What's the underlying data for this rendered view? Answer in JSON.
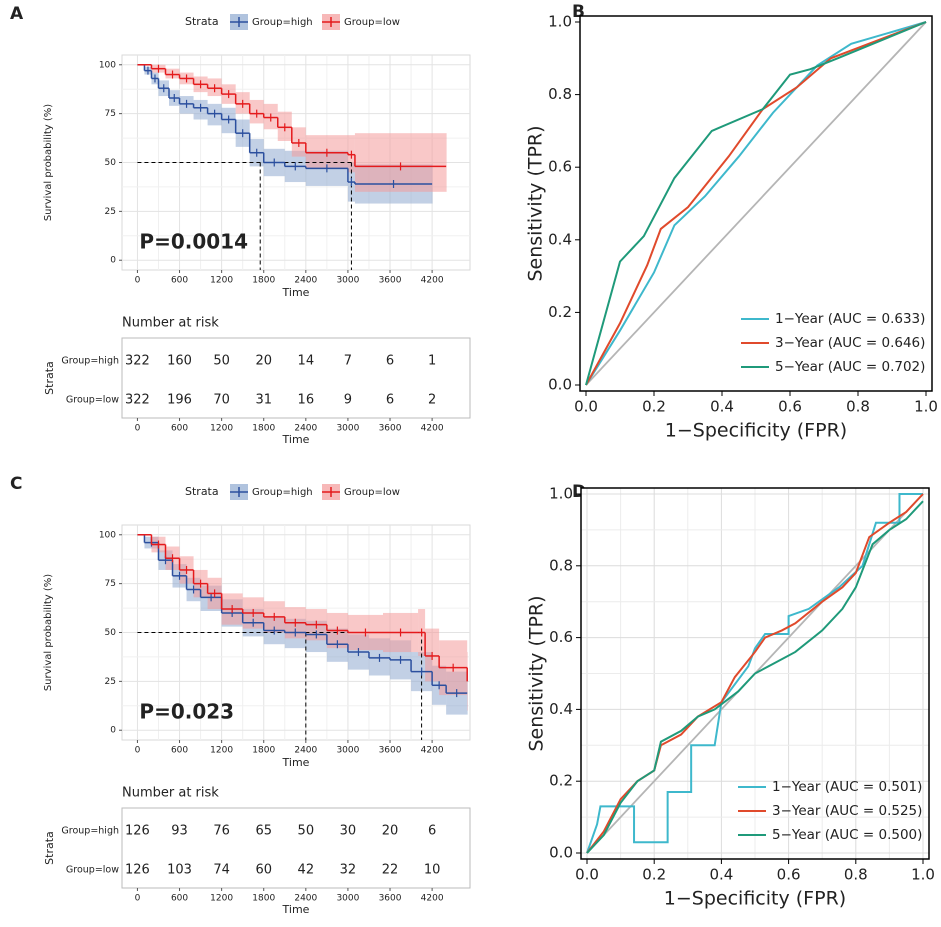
{
  "chart_data": [
    {
      "type": "km",
      "panel": "A",
      "ylabel": "Survival probability (%)",
      "xlabel": "Time",
      "legend_title": "Strata",
      "xlim": [
        -220,
        4740
      ],
      "ylim": [
        -5,
        105
      ],
      "xticks": [
        0,
        600,
        1200,
        1800,
        2400,
        3000,
        3600,
        4200
      ],
      "yticks": [
        0,
        25,
        50,
        75,
        100
      ],
      "annotation": "P=0.0014",
      "median_times": [
        1750,
        3050
      ],
      "series": [
        {
          "name": "Group=high",
          "color": "#2b4f9e",
          "band_color": "#8fa9d0",
          "x": [
            0,
            100,
            200,
            300,
            450,
            600,
            800,
            1000,
            1200,
            1400,
            1600,
            1800,
            2100,
            2400,
            3000,
            3100,
            4200
          ],
          "values": [
            100,
            97,
            93,
            88,
            83,
            80,
            78,
            75,
            72,
            65,
            55,
            50,
            48,
            47,
            40,
            39,
            39
          ],
          "lower": [
            100,
            95,
            90,
            84,
            79,
            75,
            72,
            69,
            65,
            58,
            48,
            43,
            40,
            38,
            30,
            29,
            29
          ],
          "upper": [
            100,
            99,
            96,
            92,
            87,
            84,
            82,
            80,
            78,
            72,
            62,
            57,
            56,
            56,
            50,
            49,
            49
          ]
        },
        {
          "name": "Group=low",
          "color": "#e41a1c",
          "band_color": "#f49a9a",
          "x": [
            0,
            200,
            400,
            600,
            800,
            1000,
            1200,
            1400,
            1600,
            1800,
            2000,
            2200,
            2400,
            3000,
            3100,
            4400
          ],
          "values": [
            100,
            98,
            95,
            93,
            90,
            88,
            85,
            80,
            75,
            73,
            68,
            60,
            55,
            54,
            48,
            48
          ],
          "lower": [
            100,
            96,
            93,
            90,
            86,
            84,
            80,
            75,
            70,
            67,
            61,
            53,
            47,
            45,
            35,
            35
          ],
          "upper": [
            100,
            100,
            98,
            96,
            94,
            93,
            90,
            86,
            82,
            80,
            76,
            68,
            64,
            64,
            65,
            65
          ]
        }
      ],
      "risk_table": {
        "title": "Number at risk",
        "ylabel": "Strata",
        "xlabel": "Time",
        "times": [
          0,
          600,
          1200,
          1800,
          2400,
          3000,
          3600,
          4200
        ],
        "rows": [
          [
            322,
            160,
            50,
            20,
            14,
            7,
            6,
            1
          ],
          [
            322,
            196,
            70,
            31,
            16,
            9,
            6,
            2
          ]
        ]
      }
    },
    {
      "type": "roc",
      "panel": "B",
      "xlabel": "1−Specificity (FPR)",
      "ylabel": "Sensitivity (TPR)",
      "grid": false,
      "legend": "bottom-right",
      "xlim": [
        0,
        1
      ],
      "ylim": [
        0,
        1
      ],
      "xticks": [
        {
          "value": 0,
          "label": "0.0"
        },
        {
          "value": 0.2,
          "label": "0.2"
        },
        {
          "value": 0.4,
          "label": "0.4"
        },
        {
          "value": 0.6,
          "label": "0.6"
        },
        {
          "value": 0.8,
          "label": "0.8"
        },
        {
          "value": 1,
          "label": "1.0"
        }
      ],
      "yticks": [
        {
          "value": 0,
          "label": "0.0"
        },
        {
          "value": 0.2,
          "label": "0.2"
        },
        {
          "value": 0.4,
          "label": "0.4"
        },
        {
          "value": 0.6,
          "label": "0.6"
        },
        {
          "value": 0.8,
          "label": "0.8"
        },
        {
          "value": 1,
          "label": "1.0"
        }
      ],
      "series": [
        {
          "name": "1−Year (AUC = 0.633)",
          "color": "#3eb8cc",
          "x": [
            0,
            0.1,
            0.2,
            0.26,
            0.35,
            0.45,
            0.55,
            0.68,
            0.78,
            1
          ],
          "values": [
            0,
            0.15,
            0.31,
            0.44,
            0.52,
            0.63,
            0.75,
            0.88,
            0.94,
            1
          ]
        },
        {
          "name": "3−Year (AUC = 0.646)",
          "color": "#e04a2c",
          "x": [
            0,
            0.1,
            0.18,
            0.22,
            0.3,
            0.42,
            0.52,
            0.62,
            0.72,
            1
          ],
          "values": [
            0,
            0.17,
            0.33,
            0.43,
            0.49,
            0.63,
            0.76,
            0.82,
            0.9,
            1
          ]
        },
        {
          "name": "5−Year (AUC = 0.702)",
          "color": "#1f9a7a",
          "x": [
            0,
            0.1,
            0.17,
            0.26,
            0.37,
            0.52,
            0.6,
            0.66,
            0.74,
            1
          ],
          "values": [
            0,
            0.34,
            0.41,
            0.57,
            0.7,
            0.76,
            0.855,
            0.87,
            0.9,
            1
          ]
        }
      ]
    },
    {
      "type": "km",
      "panel": "C",
      "ylabel": "Survival probability (%)",
      "xlabel": "Time",
      "legend_title": "Strata",
      "xlim": [
        -220,
        4740
      ],
      "ylim": [
        -5,
        105
      ],
      "xticks": [
        0,
        600,
        1200,
        1800,
        2400,
        3000,
        3600,
        4200
      ],
      "yticks": [
        0,
        25,
        50,
        75,
        100
      ],
      "annotation": "P=0.023",
      "median_times": [
        2400,
        4050
      ],
      "series": [
        {
          "name": "Group=high",
          "color": "#2b4f9e",
          "band_color": "#8fa9d0",
          "x": [
            0,
            100,
            300,
            500,
            700,
            900,
            1200,
            1500,
            1800,
            2100,
            2400,
            2700,
            3000,
            3300,
            3600,
            3900,
            4200,
            4400,
            4700
          ],
          "values": [
            100,
            96,
            87,
            79,
            72,
            68,
            60,
            55,
            51,
            50,
            49,
            44,
            40,
            37,
            36,
            30,
            23,
            19,
            19
          ],
          "lower": [
            100,
            93,
            82,
            73,
            66,
            61,
            53,
            48,
            44,
            42,
            40,
            35,
            31,
            28,
            26,
            20,
            13,
            8,
            8
          ],
          "upper": [
            100,
            99,
            92,
            85,
            78,
            74,
            67,
            62,
            58,
            57,
            56,
            52,
            49,
            47,
            46,
            40,
            33,
            30,
            30
          ]
        },
        {
          "name": "Group=low",
          "color": "#e41a1c",
          "band_color": "#f49a9a",
          "x": [
            0,
            200,
            400,
            600,
            800,
            1000,
            1200,
            1500,
            1800,
            2100,
            2400,
            2700,
            3000,
            3500,
            4000,
            4100,
            4300,
            4700
          ],
          "values": [
            100,
            95,
            88,
            82,
            75,
            70,
            62,
            60,
            58,
            55,
            54,
            51,
            50,
            50,
            50,
            38,
            32,
            25
          ],
          "lower": [
            100,
            91,
            82,
            75,
            68,
            62,
            54,
            52,
            50,
            47,
            46,
            42,
            41,
            40,
            38,
            25,
            18,
            10
          ],
          "upper": [
            100,
            99,
            94,
            89,
            82,
            78,
            70,
            68,
            66,
            63,
            62,
            60,
            59,
            60,
            62,
            52,
            46,
            40
          ]
        }
      ],
      "risk_table": {
        "title": "Number at risk",
        "ylabel": "Strata",
        "xlabel": "Time",
        "times": [
          0,
          600,
          1200,
          1800,
          2400,
          3000,
          3600,
          4200
        ],
        "rows": [
          [
            126,
            93,
            76,
            65,
            50,
            30,
            20,
            6
          ],
          [
            126,
            103,
            74,
            60,
            42,
            32,
            22,
            10
          ]
        ]
      }
    },
    {
      "type": "roc",
      "panel": "D",
      "xlabel": "1−Specificity (FPR)",
      "ylabel": "Sensitivity (TPR)",
      "grid": true,
      "legend": "bottom-right",
      "xlim": [
        0,
        1
      ],
      "ylim": [
        0,
        1
      ],
      "xticks": [
        {
          "value": 0,
          "label": "0.0"
        },
        {
          "value": 0.2,
          "label": "0.2"
        },
        {
          "value": 0.4,
          "label": "0.4"
        },
        {
          "value": 0.6,
          "label": "0.6"
        },
        {
          "value": 0.8,
          "label": "0.8"
        },
        {
          "value": 1,
          "label": "1.0"
        }
      ],
      "yticks": [
        {
          "value": 0,
          "label": "0.0"
        },
        {
          "value": 0.2,
          "label": "0.2"
        },
        {
          "value": 0.4,
          "label": "0.4"
        },
        {
          "value": 0.6,
          "label": "0.6"
        },
        {
          "value": 0.8,
          "label": "0.8"
        },
        {
          "value": 1,
          "label": "1.0"
        }
      ],
      "series": [
        {
          "name": "1−Year (AUC = 0.501)",
          "color": "#3eb8cc",
          "x": [
            0,
            0.03,
            0.04,
            0.14,
            0.14,
            0.24,
            0.24,
            0.31,
            0.31,
            0.38,
            0.4,
            0.48,
            0.5,
            0.53,
            0.6,
            0.6,
            0.66,
            0.75,
            0.82,
            0.86,
            0.93,
            0.93,
            0.98,
            1
          ],
          "values": [
            0,
            0.08,
            0.13,
            0.13,
            0.03,
            0.03,
            0.17,
            0.17,
            0.3,
            0.3,
            0.42,
            0.52,
            0.57,
            0.61,
            0.61,
            0.66,
            0.68,
            0.74,
            0.8,
            0.92,
            0.92,
            1,
            1,
            1
          ]
        },
        {
          "name": "3−Year (AUC = 0.525)",
          "color": "#e04a2c",
          "x": [
            0,
            0.05,
            0.1,
            0.15,
            0.2,
            0.22,
            0.28,
            0.33,
            0.4,
            0.44,
            0.5,
            0.53,
            0.58,
            0.62,
            0.7,
            0.76,
            0.8,
            0.84,
            0.9,
            0.95,
            1
          ],
          "values": [
            0,
            0.06,
            0.15,
            0.2,
            0.23,
            0.3,
            0.33,
            0.38,
            0.42,
            0.49,
            0.56,
            0.6,
            0.62,
            0.64,
            0.7,
            0.74,
            0.78,
            0.88,
            0.92,
            0.95,
            1
          ]
        },
        {
          "name": "5−Year (AUC = 0.500)",
          "color": "#1f9a7a",
          "x": [
            0,
            0.05,
            0.1,
            0.15,
            0.2,
            0.22,
            0.28,
            0.33,
            0.38,
            0.45,
            0.5,
            0.56,
            0.62,
            0.7,
            0.76,
            0.8,
            0.85,
            0.9,
            0.95,
            1
          ],
          "values": [
            0,
            0.05,
            0.14,
            0.2,
            0.23,
            0.31,
            0.34,
            0.38,
            0.4,
            0.45,
            0.5,
            0.53,
            0.56,
            0.62,
            0.68,
            0.74,
            0.86,
            0.9,
            0.93,
            0.98
          ]
        }
      ]
    }
  ]
}
